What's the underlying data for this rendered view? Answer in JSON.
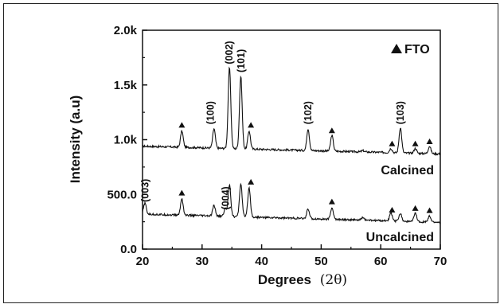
{
  "chart_data": {
    "type": "line",
    "xlabel_main": "Degrees",
    "xlabel_unit": "(2θ)",
    "ylabel": "Intensity (a.u)",
    "xlim": [
      20,
      70
    ],
    "ylim": [
      0,
      2000
    ],
    "x_ticks": [
      20,
      30,
      40,
      50,
      60,
      70
    ],
    "x_tick_labels": [
      "20",
      "30",
      "40",
      "50",
      "60",
      "70"
    ],
    "y_ticks": [
      0,
      500,
      1000,
      1500,
      2000
    ],
    "y_tick_labels": [
      "0.0",
      "500.0",
      "1.0k",
      "1.5k",
      "2.0k"
    ],
    "grid": false,
    "legend": {
      "marker": "filled-triangle",
      "label": "FTO",
      "placement": "top-right"
    },
    "series": [
      {
        "name": "Calcined",
        "baseline": 940,
        "baseline_end": 870,
        "peaks": [
          {
            "x": 26.6,
            "y": 1080
          },
          {
            "x": 32.0,
            "y": 1100
          },
          {
            "x": 34.6,
            "y": 1660
          },
          {
            "x": 36.5,
            "y": 1580
          },
          {
            "x": 37.9,
            "y": 1080
          },
          {
            "x": 47.8,
            "y": 1100
          },
          {
            "x": 51.8,
            "y": 1040
          },
          {
            "x": 57.0,
            "y": 900
          },
          {
            "x": 61.7,
            "y": 920
          },
          {
            "x": 63.3,
            "y": 1110
          },
          {
            "x": 65.8,
            "y": 920
          },
          {
            "x": 68.2,
            "y": 940
          }
        ]
      },
      {
        "name": "Uncalcined",
        "baseline": 320,
        "baseline_end": 245,
        "peaks": [
          {
            "x": 20.4,
            "y": 420
          },
          {
            "x": 26.6,
            "y": 460
          },
          {
            "x": 32.0,
            "y": 400
          },
          {
            "x": 33.9,
            "y": 370
          },
          {
            "x": 34.6,
            "y": 590
          },
          {
            "x": 36.5,
            "y": 600
          },
          {
            "x": 37.9,
            "y": 560
          },
          {
            "x": 47.8,
            "y": 370
          },
          {
            "x": 51.8,
            "y": 380
          },
          {
            "x": 57.0,
            "y": 290
          },
          {
            "x": 61.7,
            "y": 330
          },
          {
            "x": 63.3,
            "y": 330
          },
          {
            "x": 65.8,
            "y": 330
          },
          {
            "x": 68.2,
            "y": 300
          }
        ]
      }
    ],
    "annotations": [
      {
        "text": "(002)",
        "x": 34.6,
        "y": 1690
      },
      {
        "text": "(101)",
        "x": 36.6,
        "y": 1615
      },
      {
        "text": "(100)",
        "x": 31.4,
        "y": 1140
      },
      {
        "text": "(102)",
        "x": 47.8,
        "y": 1140
      },
      {
        "text": "(103)",
        "x": 63.3,
        "y": 1140
      },
      {
        "text": "(003)",
        "x": 20.5,
        "y": 430
      },
      {
        "text": "(004)",
        "x": 34.0,
        "y": 360
      }
    ],
    "fto_markers": [
      {
        "x": 26.6,
        "y": 1110
      },
      {
        "x": 38.2,
        "y": 1110
      },
      {
        "x": 51.8,
        "y": 1060
      },
      {
        "x": 61.9,
        "y": 940
      },
      {
        "x": 65.8,
        "y": 940
      },
      {
        "x": 68.2,
        "y": 960
      },
      {
        "x": 26.6,
        "y": 490
      },
      {
        "x": 38.2,
        "y": 590
      },
      {
        "x": 51.8,
        "y": 410
      },
      {
        "x": 61.9,
        "y": 335
      },
      {
        "x": 65.8,
        "y": 350
      },
      {
        "x": 68.2,
        "y": 330
      }
    ]
  }
}
